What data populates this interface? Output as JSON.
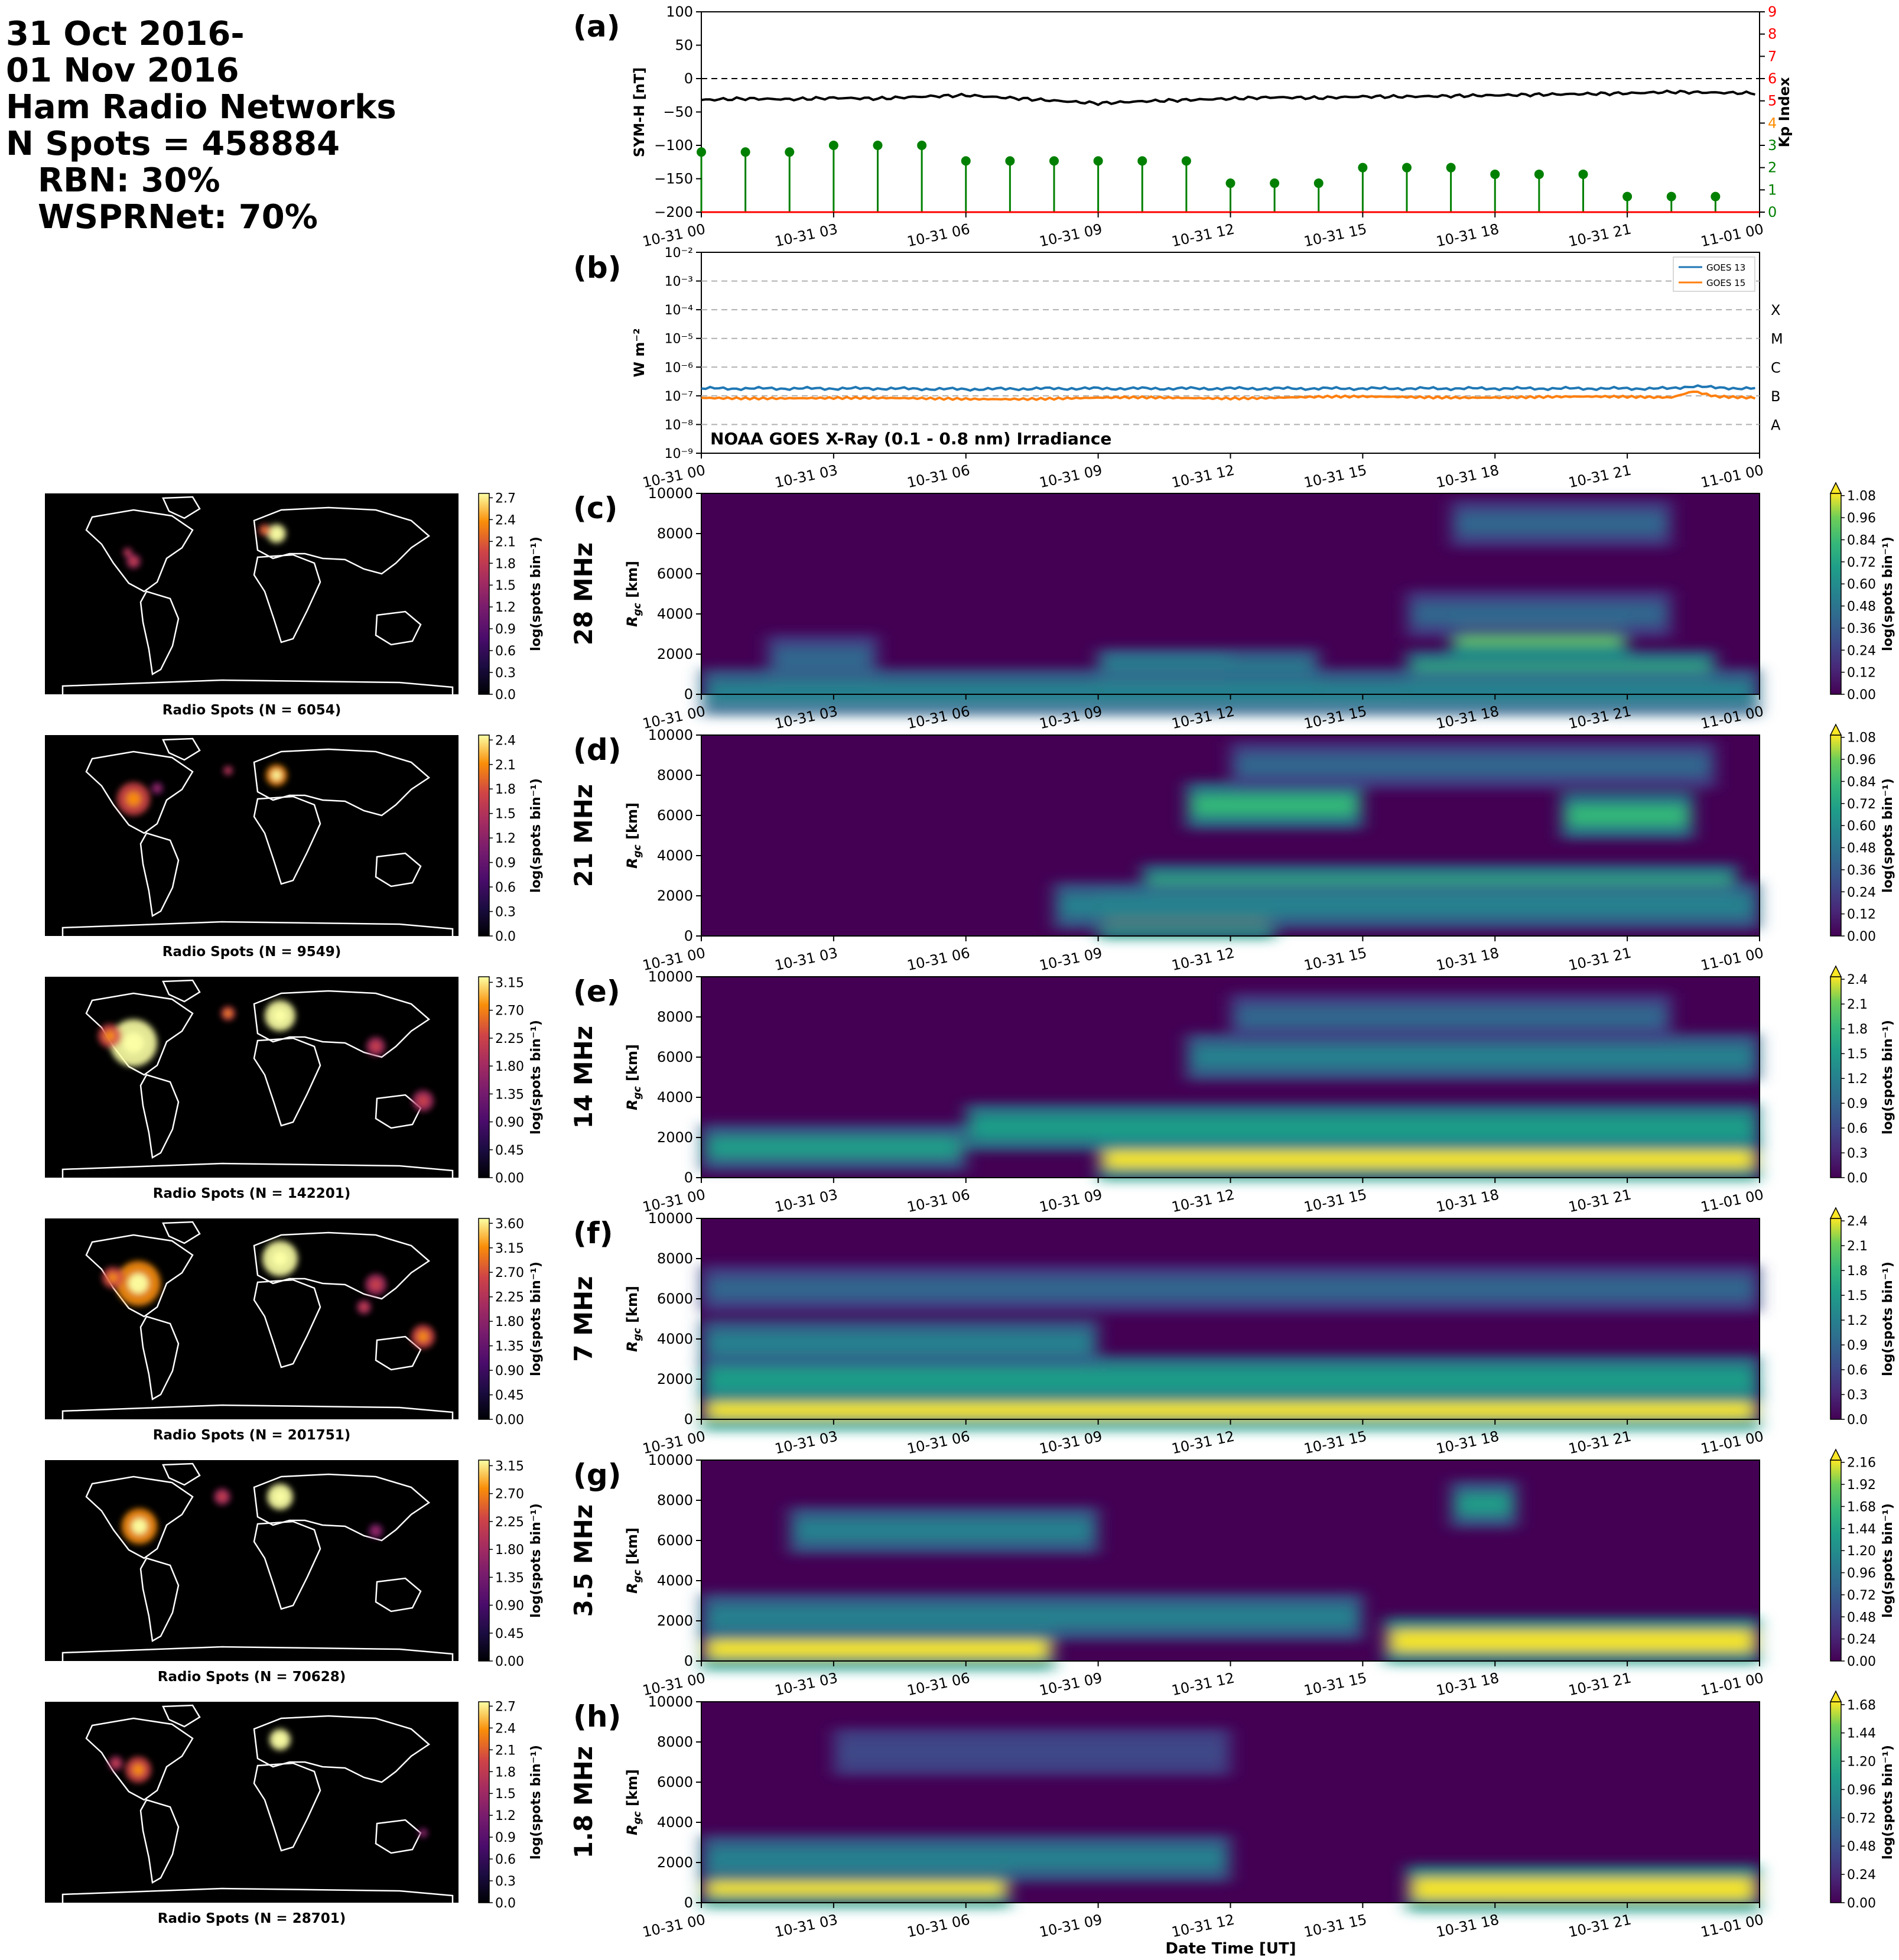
{
  "header": {
    "lines": [
      "31 Oct 2016-",
      "01 Nov 2016",
      "Ham Radio Networks",
      "N Spots = 458884",
      "RBN: 30%",
      "WSPRNet: 70%"
    ]
  },
  "time_ticks": [
    "10-31 00",
    "10-31 03",
    "10-31 06",
    "10-31 09",
    "10-31 12",
    "10-31 15",
    "10-31 18",
    "10-31 21",
    "11-01 00"
  ],
  "symh_panel": {
    "panel_label": "(a)",
    "ylabel": "SYM-H [nT]",
    "yticks": [
      "100",
      "50",
      "0",
      "−50",
      "−100",
      "−150",
      "−200"
    ],
    "y2label": "Kp Index",
    "y2ticks": [
      "0",
      "1",
      "2",
      "3",
      "4",
      "5",
      "6",
      "7",
      "8",
      "9"
    ],
    "y2tick_colors": [
      "#008000",
      "#008000",
      "#008000",
      "#008000",
      "#ff8c00",
      "#ff0000",
      "#ff0000",
      "#ff0000",
      "#ff0000",
      "#ff0000"
    ]
  },
  "goes_panel": {
    "panel_label": "(b)",
    "ylabel": "W m⁻²",
    "yticks": [
      "10⁻²",
      "10⁻³",
      "10⁻⁴",
      "10⁻⁵",
      "10⁻⁶",
      "10⁻⁷",
      "10⁻⁸",
      "10⁻⁹"
    ],
    "flare_classes": [
      "X",
      "M",
      "C",
      "B",
      "A"
    ],
    "annotation": "NOAA GOES X-Ray (0.1 - 0.8 nm) Irradiance",
    "legend": [
      "GOES 13",
      "GOES 15"
    ]
  },
  "bands": [
    {
      "panel_label": "(c)",
      "band": "28 MHz",
      "map_caption": "Radio Spots (N = 6054)",
      "map_ticks": [
        "0.0",
        "0.3",
        "0.6",
        "0.9",
        "1.2",
        "1.5",
        "1.8",
        "2.1",
        "2.4",
        "2.7"
      ],
      "rti_ticks": [
        "0.00",
        "0.12",
        "0.24",
        "0.36",
        "0.48",
        "0.60",
        "0.72",
        "0.84",
        "0.96",
        "1.08"
      ]
    },
    {
      "panel_label": "(d)",
      "band": "21 MHz",
      "map_caption": "Radio Spots (N = 9549)",
      "map_ticks": [
        "0.0",
        "0.3",
        "0.6",
        "0.9",
        "1.2",
        "1.5",
        "1.8",
        "2.1",
        "2.4"
      ],
      "rti_ticks": [
        "0.00",
        "0.12",
        "0.24",
        "0.36",
        "0.48",
        "0.60",
        "0.72",
        "0.84",
        "0.96",
        "1.08"
      ]
    },
    {
      "panel_label": "(e)",
      "band": "14 MHz",
      "map_caption": "Radio Spots (N = 142201)",
      "map_ticks": [
        "0.00",
        "0.45",
        "0.90",
        "1.35",
        "1.80",
        "2.25",
        "2.70",
        "3.15"
      ],
      "rti_ticks": [
        "0.0",
        "0.3",
        "0.6",
        "0.9",
        "1.2",
        "1.5",
        "1.8",
        "2.1",
        "2.4"
      ]
    },
    {
      "panel_label": "(f)",
      "band": "7 MHz",
      "map_caption": "Radio Spots (N = 201751)",
      "map_ticks": [
        "0.00",
        "0.45",
        "0.90",
        "1.35",
        "1.80",
        "2.25",
        "2.70",
        "3.15",
        "3.60"
      ],
      "rti_ticks": [
        "0.0",
        "0.3",
        "0.6",
        "0.9",
        "1.2",
        "1.5",
        "1.8",
        "2.1",
        "2.4"
      ]
    },
    {
      "panel_label": "(g)",
      "band": "3.5 MHz",
      "map_caption": "Radio Spots (N = 70628)",
      "map_ticks": [
        "0.00",
        "0.45",
        "0.90",
        "1.35",
        "1.80",
        "2.25",
        "2.70",
        "3.15"
      ],
      "rti_ticks": [
        "0.00",
        "0.24",
        "0.48",
        "0.72",
        "0.96",
        "1.20",
        "1.44",
        "1.68",
        "1.92",
        "2.16"
      ]
    },
    {
      "panel_label": "(h)",
      "band": "1.8 MHz",
      "map_caption": "Radio Spots (N = 28701)",
      "map_ticks": [
        "0.0",
        "0.3",
        "0.6",
        "0.9",
        "1.2",
        "1.5",
        "1.8",
        "2.1",
        "2.4",
        "2.7"
      ],
      "rti_ticks": [
        "0.00",
        "0.24",
        "0.48",
        "0.72",
        "0.96",
        "1.20",
        "1.44",
        "1.68"
      ]
    }
  ],
  "rti_ylabel": "R",
  "rti_ylabel_sub": "gc",
  "rti_ylabel_unit": " [km]",
  "rti_yticks": [
    "0",
    "2000",
    "4000",
    "6000",
    "8000",
    "10000"
  ],
  "colorbar_label": "log(spots bin⁻¹)",
  "xlabel": "Date Time [UT]",
  "colors": {
    "symh_line": "#000000",
    "kp_stem": "#008000",
    "goes13": "#1f77b4",
    "goes15": "#ff7f0e",
    "map_bg": "#000000",
    "map_coast": "#ffffff"
  },
  "chart_data": [
    {
      "type": "line",
      "title": "",
      "ylabel": "SYM-H [nT]",
      "ylim": [
        -200,
        100
      ],
      "x_range": [
        "2016-10-31 00:00",
        "2016-11-01 00:00"
      ],
      "series": [
        {
          "name": "SYM-H",
          "x_hours": [
            0,
            1,
            2,
            3,
            4,
            5,
            6,
            7,
            8,
            9,
            10,
            11,
            12,
            13,
            14,
            15,
            16,
            17,
            18,
            19,
            20,
            21,
            22,
            23,
            24
          ],
          "values": [
            -32,
            -30,
            -31,
            -29,
            -30,
            -27,
            -25,
            -29,
            -33,
            -37,
            -34,
            -32,
            -30,
            -28,
            -29,
            -27,
            -27,
            -26,
            -25,
            -24,
            -23,
            -22,
            -20,
            -21,
            -22
          ]
        },
        {
          "name": "Kp Index",
          "axis": "right",
          "ylim": [
            0,
            9
          ],
          "x_hours": [
            0,
            1,
            2,
            3,
            4,
            5,
            6,
            7,
            8,
            9,
            10,
            11,
            12,
            13,
            14,
            15,
            16,
            17,
            18,
            19,
            20,
            21,
            22,
            23
          ],
          "values": [
            2.7,
            2.7,
            2.7,
            3.0,
            3.0,
            3.0,
            2.3,
            2.3,
            2.3,
            2.3,
            2.3,
            2.3,
            1.3,
            1.3,
            1.3,
            2.0,
            2.0,
            2.0,
            1.7,
            1.7,
            1.7,
            0.7,
            0.7,
            0.7
          ]
        }
      ]
    },
    {
      "type": "line",
      "title": "NOAA GOES X-Ray (0.1 - 0.8 nm) Irradiance",
      "ylabel": "W m-2",
      "yscale": "log",
      "ylim": [
        1e-09,
        0.01
      ],
      "series": [
        {
          "name": "GOES 13",
          "x_hours": [
            0,
            2,
            4,
            6,
            8,
            10,
            12,
            14,
            16,
            18,
            20,
            21,
            22,
            22.5,
            23,
            24
          ],
          "values": [
            1.8e-07,
            1.8e-07,
            1.8e-07,
            1.7e-07,
            1.8e-07,
            1.8e-07,
            1.8e-07,
            1.8e-07,
            1.8e-07,
            1.8e-07,
            1.8e-07,
            1.8e-07,
            1.8e-07,
            2.2e-07,
            1.9e-07,
            1.8e-07
          ]
        },
        {
          "name": "GOES 15",
          "x_hours": [
            0,
            2,
            4,
            6,
            8,
            10,
            12,
            14,
            16,
            18,
            20,
            21,
            22,
            22.5,
            23,
            24
          ],
          "values": [
            8.5e-08,
            8.5e-08,
            8e-08,
            8e-08,
            8e-08,
            8.5e-08,
            8.5e-08,
            9e-08,
            9e-08,
            9e-08,
            9e-08,
            9e-08,
            9e-08,
            1.5e-07,
            1e-07,
            8.5e-08
          ]
        }
      ]
    },
    {
      "type": "heatmap",
      "band": "28 MHz",
      "colorbar_range": [
        0,
        1.08
      ],
      "x_range": [
        "2016-10-31 00:00",
        "2016-11-01 00:00"
      ],
      "y_range_km": [
        0,
        10000
      ],
      "features": [
        {
          "t_hours": [
            9,
            12
          ],
          "r_km": 900,
          "level": 1.05
        },
        {
          "t_hours": [
            9,
            14
          ],
          "r_km": 1100,
          "level": 0.6
        },
        {
          "t_hours": [
            16,
            23
          ],
          "r_km": 1000,
          "level": 0.85
        },
        {
          "t_hours": [
            17,
            21
          ],
          "r_km": 3000,
          "level": 0.95
        },
        {
          "t_hours": [
            16,
            22
          ],
          "r_km": 4000,
          "level": 0.45
        },
        {
          "t_hours": [
            1.5,
            4
          ],
          "r_km": 1800,
          "level": 0.4
        },
        {
          "t_hours": [
            17,
            22
          ],
          "r_km": 8500,
          "level": 0.4
        },
        {
          "t_hours": [
            0,
            24
          ],
          "r_km": 100,
          "level": 0.5
        }
      ]
    },
    {
      "type": "heatmap",
      "band": "21 MHz",
      "colorbar_range": [
        0,
        1.08
      ],
      "x_range": [
        "2016-10-31 00:00",
        "2016-11-01 00:00"
      ],
      "y_range_km": [
        0,
        10000
      ],
      "features": [
        {
          "t_hours": [
            9,
            13
          ],
          "r_km": 1000,
          "level": 1.05
        },
        {
          "t_hours": [
            10,
            23.5
          ],
          "r_km": 2400,
          "level": 0.85
        },
        {
          "t_hours": [
            11,
            15
          ],
          "r_km": 6500,
          "level": 0.85
        },
        {
          "t_hours": [
            19.5,
            22.5
          ],
          "r_km": 6000,
          "level": 0.85
        },
        {
          "t_hours": [
            12,
            23
          ],
          "r_km": 8500,
          "level": 0.4
        },
        {
          "t_hours": [
            8,
            24
          ],
          "r_km": 1500,
          "level": 0.6
        }
      ]
    },
    {
      "type": "heatmap",
      "band": "14 MHz",
      "colorbar_range": [
        0,
        2.4
      ],
      "x_range": [
        "2016-10-31 00:00",
        "2016-11-01 00:00"
      ],
      "y_range_km": [
        0,
        10000
      ],
      "features": [
        {
          "t_hours": [
            9,
            24
          ],
          "r_km": 1000,
          "level": 2.3
        },
        {
          "t_hours": [
            0,
            6
          ],
          "r_km": 1500,
          "level": 1.4
        },
        {
          "t_hours": [
            6,
            24
          ],
          "r_km": 2500,
          "level": 1.5
        },
        {
          "t_hours": [
            11,
            24
          ],
          "r_km": 6000,
          "level": 1.3
        },
        {
          "t_hours": [
            12,
            22
          ],
          "r_km": 8000,
          "level": 0.8
        }
      ]
    },
    {
      "type": "heatmap",
      "band": "7 MHz",
      "colorbar_range": [
        0,
        2.4
      ],
      "x_range": [
        "2016-10-31 00:00",
        "2016-11-01 00:00"
      ],
      "y_range_km": [
        0,
        10000
      ],
      "features": [
        {
          "t_hours": [
            0,
            24
          ],
          "r_km": 600,
          "level": 2.3
        },
        {
          "t_hours": [
            0,
            24
          ],
          "r_km": 2000,
          "level": 1.6
        },
        {
          "t_hours": [
            0,
            9
          ],
          "r_km": 3800,
          "level": 1.2
        },
        {
          "t_hours": [
            0,
            24
          ],
          "r_km": 6500,
          "level": 0.9
        }
      ]
    },
    {
      "type": "heatmap",
      "band": "3.5 MHz",
      "colorbar_range": [
        0,
        2.16
      ],
      "x_range": [
        "2016-10-31 00:00",
        "2016-11-01 00:00"
      ],
      "y_range_km": [
        0,
        10000
      ],
      "features": [
        {
          "t_hours": [
            0,
            8
          ],
          "r_km": 700,
          "level": 2.1
        },
        {
          "t_hours": [
            15.5,
            24
          ],
          "r_km": 1000,
          "level": 2.1
        },
        {
          "t_hours": [
            0,
            15
          ],
          "r_km": 2200,
          "level": 1.2
        },
        {
          "t_hours": [
            17,
            18.5
          ],
          "r_km": 7800,
          "level": 1.3
        },
        {
          "t_hours": [
            2,
            9
          ],
          "r_km": 6500,
          "level": 1.0
        }
      ]
    },
    {
      "type": "heatmap",
      "band": "1.8 MHz",
      "colorbar_range": [
        0,
        1.68
      ],
      "x_range": [
        "2016-10-31 00:00",
        "2016-11-01 00:00"
      ],
      "y_range_km": [
        0,
        10000
      ],
      "features": [
        {
          "t_hours": [
            0,
            7
          ],
          "r_km": 900,
          "level": 1.65
        },
        {
          "t_hours": [
            16,
            24
          ],
          "r_km": 700,
          "level": 1.6
        },
        {
          "t_hours": [
            0,
            12
          ],
          "r_km": 2200,
          "level": 0.9
        },
        {
          "t_hours": [
            3,
            12
          ],
          "r_km": 7500,
          "level": 0.5
        }
      ]
    }
  ]
}
